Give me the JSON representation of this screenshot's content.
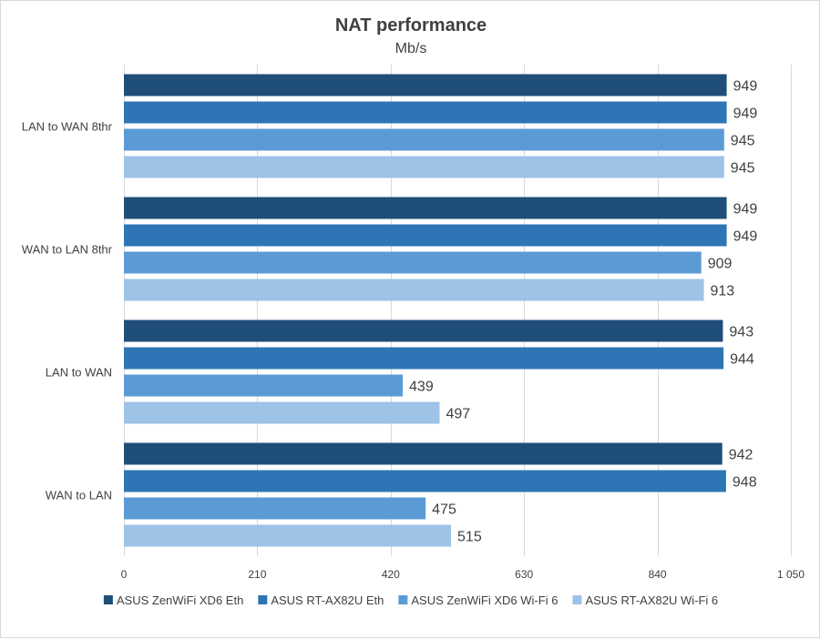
{
  "chart_data": {
    "type": "bar",
    "orientation": "horizontal",
    "title": "NAT performance",
    "subtitle": "Mb/s",
    "categories": [
      "LAN to WAN 8thr",
      "WAN to LAN 8thr",
      "LAN to WAN",
      "WAN to LAN"
    ],
    "series": [
      {
        "name": "ASUS ZenWiFi XD6 Eth",
        "color": "#1f4e79",
        "values": [
          949,
          949,
          943,
          942
        ]
      },
      {
        "name": "ASUS RT-AX82U Eth",
        "color": "#2e75b6",
        "values": [
          949,
          949,
          944,
          948
        ]
      },
      {
        "name": "ASUS ZenWiFi XD6 Wi-Fi 6",
        "color": "#5b9bd5",
        "values": [
          945,
          909,
          439,
          475
        ]
      },
      {
        "name": "ASUS RT-AX82U Wi-Fi 6",
        "color": "#9dc3e6",
        "values": [
          945,
          913,
          497,
          515
        ]
      }
    ],
    "xlim": [
      0,
      1050
    ],
    "x_ticks": [
      0,
      210,
      420,
      630,
      840,
      1050
    ],
    "x_tick_labels": [
      "0",
      "210",
      "420",
      "630",
      "840",
      "1 050"
    ],
    "grid": "vertical",
    "legend_position": "bottom"
  }
}
